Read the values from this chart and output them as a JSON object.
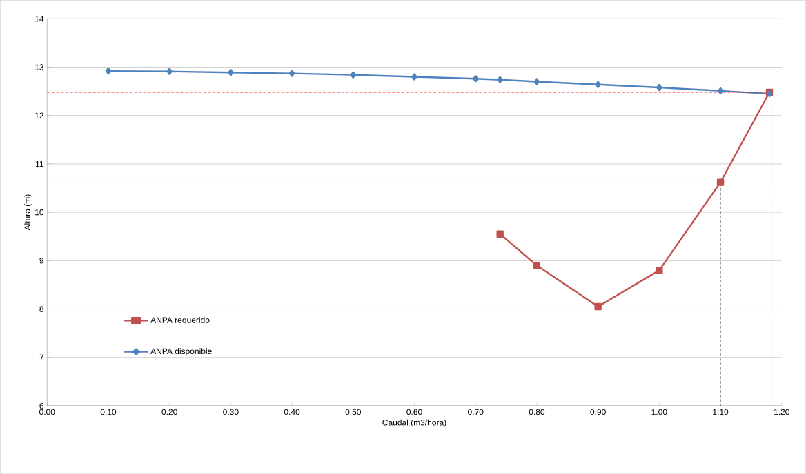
{
  "chart_data": {
    "type": "line",
    "xlabel": "Caudal (m3/hora)",
    "ylabel": "Altura (m)",
    "xlim": [
      0,
      1.2
    ],
    "ylim": [
      6,
      14
    ],
    "xticks": [
      {
        "value": 0,
        "label": "0.00"
      },
      {
        "value": 0.1,
        "label": "0.10"
      },
      {
        "value": 0.2,
        "label": "0.20"
      },
      {
        "value": 0.3,
        "label": "0.30"
      },
      {
        "value": 0.4,
        "label": "0.40"
      },
      {
        "value": 0.5,
        "label": "0.50"
      },
      {
        "value": 0.6,
        "label": "0.60"
      },
      {
        "value": 0.7,
        "label": "0.70"
      },
      {
        "value": 0.8,
        "label": "0.80"
      },
      {
        "value": 0.9,
        "label": "0.90"
      },
      {
        "value": 1.0,
        "label": "1.00"
      },
      {
        "value": 1.1,
        "label": "1.10"
      },
      {
        "value": 1.2,
        "label": "1.20"
      }
    ],
    "yticks": [
      6,
      7,
      8,
      9,
      10,
      11,
      12,
      13,
      14
    ],
    "grid": "y",
    "legend": "left",
    "series": [
      {
        "name": "ANPA requerido",
        "color": "#c0504d",
        "marker": "square",
        "x": [
          0.74,
          0.8,
          0.9,
          1.0,
          1.1,
          1.18
        ],
        "values": [
          9.55,
          8.9,
          8.05,
          8.8,
          10.62,
          12.48
        ]
      },
      {
        "name": "ANPA disponible",
        "color": "#4f81bd",
        "marker": "diamond",
        "x": [
          0.1,
          0.2,
          0.3,
          0.4,
          0.5,
          0.6,
          0.7,
          0.74,
          0.8,
          0.9,
          1.0,
          1.1,
          1.18
        ],
        "values": [
          12.92,
          12.91,
          12.89,
          12.87,
          12.84,
          12.8,
          12.76,
          12.74,
          12.7,
          12.64,
          12.58,
          12.51,
          12.45
        ]
      },
      {
        "color": "#ff0000",
        "marker": "none",
        "line_style": "dashed",
        "x": [
          0,
          1.183,
          1.183
        ],
        "values": [
          12.48,
          12.48,
          6
        ]
      },
      {
        "color": "#000000",
        "marker": "none",
        "line_style": "dashed",
        "x": [
          0,
          1.1,
          1.1
        ],
        "values": [
          10.65,
          10.65,
          6
        ]
      }
    ]
  }
}
